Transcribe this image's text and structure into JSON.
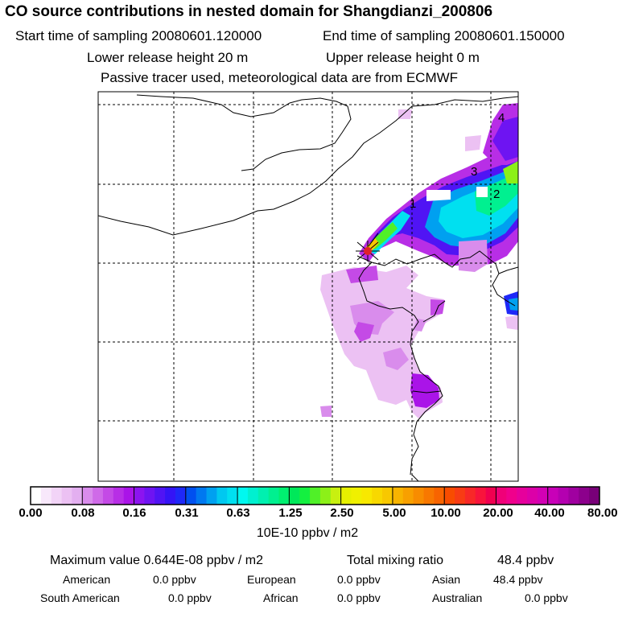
{
  "header": {
    "title": "CO  source contributions in nested domain for Shangdianzi_200806",
    "start_label": "Start time of sampling 20080601.120000",
    "end_label": "End time of sampling 20080601.150000",
    "lower_release": "Lower release height   20 m",
    "upper_release": "Upper release height    0 m",
    "note": "Passive tracer used, meteorological data are from ECMWF"
  },
  "map": {
    "markers": [
      "1",
      "2",
      "3",
      "4"
    ],
    "receptor_color": "#e0202a"
  },
  "colorbar": {
    "labels": [
      "0.00",
      "0.08",
      "0.16",
      "0.31",
      "0.63",
      "1.25",
      "2.50",
      "5.00",
      "10.00",
      "20.00",
      "40.00",
      "80.00"
    ],
    "units": "10E-10 ppbv / m2",
    "colors": [
      [
        "#ffffff",
        "#f8e8fb",
        "#f2d4f7",
        "#ecc1f3",
        "#e3aff0"
      ],
      [
        "#d98cec",
        "#cf6ae8",
        "#c44ae6",
        "#b82ee6",
        "#aa14e8"
      ],
      [
        "#8c14f0",
        "#6e14f2",
        "#5014f4",
        "#3414f6",
        "#1e28f8"
      ],
      [
        "#0050f0",
        "#0078f0",
        "#00a0f0",
        "#00c8f0",
        "#00e0f0"
      ],
      [
        "#00f8f0",
        "#00f0d0",
        "#00f0b0",
        "#00f090",
        "#00f070"
      ],
      [
        "#00e85a",
        "#14f040",
        "#50f028",
        "#8cf018",
        "#c8f010"
      ],
      [
        "#e6f000",
        "#f0f000",
        "#f8e800",
        "#f8d800",
        "#f8c800"
      ],
      [
        "#f8b400",
        "#f8a000",
        "#f88c00",
        "#f87800",
        "#f86400"
      ],
      [
        "#f84c00",
        "#f83c14",
        "#f82828",
        "#f8143c",
        "#f00050"
      ],
      [
        "#f00078",
        "#f0008c",
        "#e6009c",
        "#dc00a8",
        "#d200b4"
      ],
      [
        "#c800b8",
        "#b400b0",
        "#a000a0",
        "#8c008c",
        "#780078"
      ]
    ]
  },
  "stats": {
    "max_label": "Maximum value  0.644E-08 ppbv / m2",
    "total_label": "Total mixing ratio",
    "total_value": "48.4 ppbv"
  },
  "regions": [
    {
      "name": "American",
      "value": "0.0 ppbv"
    },
    {
      "name": "European",
      "value": "0.0 ppbv"
    },
    {
      "name": "Asian",
      "value": "48.4 ppbv"
    },
    {
      "name": "South American",
      "value": "0.0 ppbv"
    },
    {
      "name": "African",
      "value": "0.0 ppbv"
    },
    {
      "name": "Australian",
      "value": "0.0 ppbv"
    }
  ]
}
